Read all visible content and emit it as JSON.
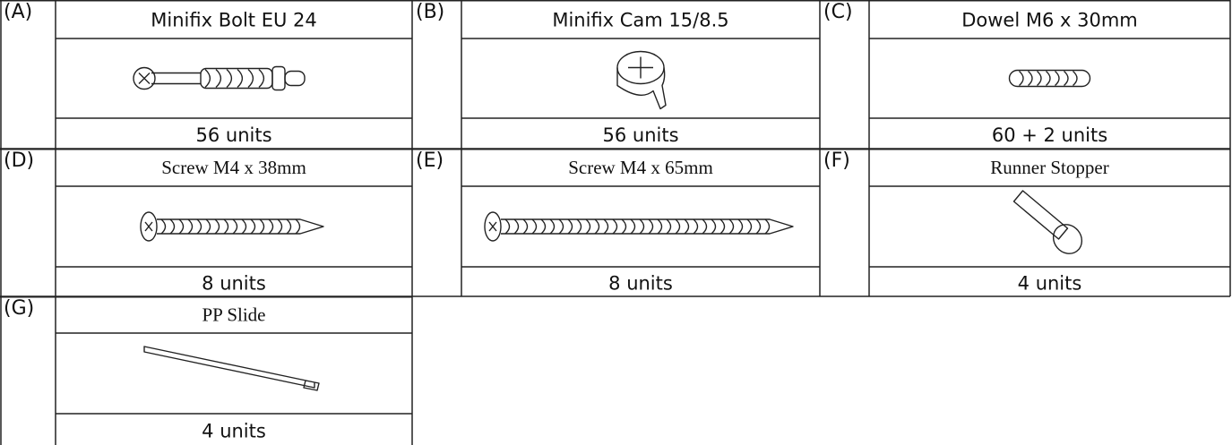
{
  "parts": [
    {
      "label": "(A)",
      "name": "Minifix Bolt EU 24",
      "quantity": "56 units"
    },
    {
      "label": "(B)",
      "name": "Minifix Cam 15/8.5",
      "quantity": "56 units"
    },
    {
      "label": "(C)",
      "name": "Dowel M6 x 30mm",
      "quantity": "60 + 2 units"
    },
    {
      "label": "(D)",
      "name": "Screw M4 x 38mm",
      "quantity": "8 units"
    },
    {
      "label": "(E)",
      "name": "Screw M4 x 65mm",
      "quantity": "8 units"
    },
    {
      "label": "(F)",
      "name": "Runner Stopper",
      "quantity": "4 units"
    },
    {
      "label": "(G)",
      "name": "PP Slide",
      "quantity": "4 units"
    }
  ]
}
